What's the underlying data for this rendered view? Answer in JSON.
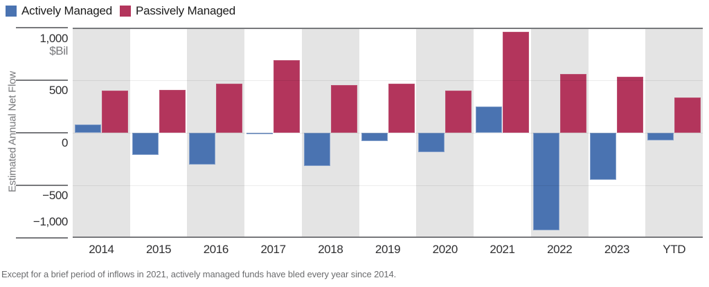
{
  "legend": {
    "items": [
      {
        "label": "Actively Managed",
        "color": "#4a73b1"
      },
      {
        "label": "Passively Managed",
        "color": "#b3355c"
      }
    ]
  },
  "y_axis": {
    "title": "Estimated Annual Net Flow",
    "unit": "$Bil",
    "ticks": [
      "1,000",
      "500",
      "0",
      "−500",
      "−1,000"
    ]
  },
  "footnote": "Except for a brief period of inflows in 2021, actively managed funds have bled every year since 2014.",
  "colors": {
    "active": "#4a73b1",
    "passive": "#b3355c",
    "band_gray": "#e4e4e4",
    "band_white": "#ffffff",
    "axis_frame": "#77787b"
  },
  "chart_data": {
    "type": "bar",
    "title": "",
    "xlabel": "",
    "ylabel": "Estimated Annual Net Flow",
    "unit": "$Bil",
    "ylim": [
      -1000,
      1000
    ],
    "grid": "horizontal, every 500",
    "legend_position": "top-left",
    "background_bands": "alternating gray/white per category, starting gray",
    "categories": [
      "2014",
      "2015",
      "2016",
      "2017",
      "2018",
      "2019",
      "2020",
      "2021",
      "2022",
      "2023",
      "YTD"
    ],
    "series": [
      {
        "name": "Actively Managed",
        "color": "#4a73b1",
        "values": [
          80,
          -210,
          -305,
          -10,
          -315,
          -80,
          -185,
          250,
          -930,
          -450,
          -70
        ]
      },
      {
        "name": "Passively Managed",
        "color": "#b3355c",
        "values": [
          400,
          405,
          470,
          690,
          455,
          465,
          400,
          960,
          560,
          530,
          335
        ]
      }
    ]
  }
}
